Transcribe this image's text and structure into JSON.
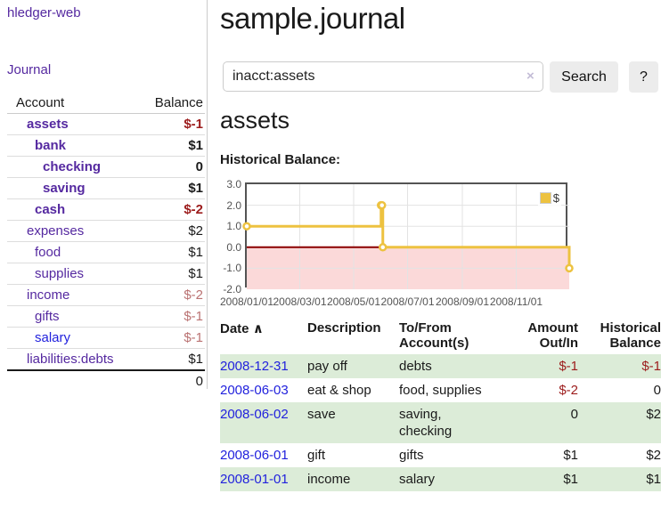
{
  "brand": "hledger-web",
  "nav": {
    "journal_label": "Journal"
  },
  "sidebar": {
    "columns": {
      "account": "Account",
      "balance": "Balance"
    },
    "accounts": [
      {
        "name": "assets",
        "indent": 1,
        "bold": true,
        "balance": "$-1",
        "balance_style": "neg-strong",
        "link": "visited"
      },
      {
        "name": "bank",
        "indent": 2,
        "bold": true,
        "balance": "$1",
        "balance_style": "pos",
        "link": "visited"
      },
      {
        "name": "checking",
        "indent": 3,
        "bold": true,
        "balance": "0",
        "balance_style": "pos",
        "link": "visited"
      },
      {
        "name": "saving",
        "indent": 3,
        "bold": true,
        "balance": "$1",
        "balance_style": "pos",
        "link": "visited"
      },
      {
        "name": "cash",
        "indent": 2,
        "bold": true,
        "balance": "$-2",
        "balance_style": "neg-strong",
        "link": "visited"
      },
      {
        "name": "expenses",
        "indent": 1,
        "bold": false,
        "balance": "$2",
        "balance_style": "pos",
        "link": "visited"
      },
      {
        "name": "food",
        "indent": 2,
        "bold": false,
        "balance": "$1",
        "balance_style": "pos",
        "link": "visited"
      },
      {
        "name": "supplies",
        "indent": 2,
        "bold": false,
        "balance": "$1",
        "balance_style": "pos",
        "link": "visited"
      },
      {
        "name": "income",
        "indent": 1,
        "bold": false,
        "balance": "$-2",
        "balance_style": "neg-muted",
        "link": "visited"
      },
      {
        "name": "gifts",
        "indent": 2,
        "bold": false,
        "balance": "$-1",
        "balance_style": "neg-muted",
        "link": "visited"
      },
      {
        "name": "salary",
        "indent": 2,
        "bold": false,
        "balance": "$-1",
        "balance_style": "neg-muted",
        "link": "unvisited"
      },
      {
        "name": "liabilities:debts",
        "indent": 1,
        "bold": false,
        "balance": "$1",
        "balance_style": "pos",
        "link": "visited"
      }
    ],
    "total": "0"
  },
  "header": {
    "title": "sample.journal"
  },
  "search": {
    "value": "inacct:assets",
    "clear_icon": "×",
    "button_label": "Search",
    "help_label": "?"
  },
  "account_page": {
    "heading": "assets",
    "chart_label": "Historical Balance:"
  },
  "chart_data": {
    "type": "line",
    "title": "Historical Balance",
    "step": true,
    "series": [
      {
        "name": "$",
        "color": "#edc240",
        "points": [
          [
            "2008-01-01",
            1.0
          ],
          [
            "2008-06-01",
            2.0
          ],
          [
            "2008-06-02",
            2.0
          ],
          [
            "2008-06-03",
            0.0
          ],
          [
            "2008-12-31",
            -1.0
          ]
        ]
      }
    ],
    "x_range": [
      "2008-01-01",
      "2008-12-31"
    ],
    "ylim": [
      -2.0,
      3.0
    ],
    "y_ticks": [
      3.0,
      2.0,
      1.0,
      0.0,
      -1.0,
      -2.0
    ],
    "x_ticks": [
      "2008/01/01",
      "2008/03/01",
      "2008/05/01",
      "2008/07/01",
      "2008/09/01",
      "2008/11/01"
    ],
    "legend": {
      "label": "$",
      "position": "top-right"
    },
    "grid": true,
    "colors": {
      "line": "#edc240",
      "marker_fill": "#ffffff",
      "negative_region": "#fbd9d9",
      "zero_line": "#8b0000",
      "gridline": "#e3e3e3",
      "border": "#545454",
      "tick_text": "#545454"
    }
  },
  "register_table": {
    "columns": [
      "Date",
      "Description",
      "To/From Account(s)",
      "Amount Out/In",
      "Historical Balance"
    ],
    "sort_icon": "∧",
    "rows": [
      {
        "date": "2008-12-31",
        "description": "pay off",
        "accounts": "debts",
        "amount": "$-1",
        "amount_neg": true,
        "balance": "$-1",
        "balance_neg": true,
        "shaded": true
      },
      {
        "date": "2008-06-03",
        "description": "eat & shop",
        "accounts": "food, supplies",
        "amount": "$-2",
        "amount_neg": true,
        "balance": "0",
        "balance_neg": false,
        "shaded": false
      },
      {
        "date": "2008-06-02",
        "description": "save",
        "accounts": "saving, checking",
        "amount": "0",
        "amount_neg": false,
        "balance": "$2",
        "balance_neg": false,
        "shaded": true
      },
      {
        "date": "2008-06-01",
        "description": "gift",
        "accounts": "gifts",
        "amount": "$1",
        "amount_neg": false,
        "balance": "$2",
        "balance_neg": false,
        "shaded": false
      },
      {
        "date": "2008-01-01",
        "description": "income",
        "accounts": "salary",
        "amount": "$1",
        "amount_neg": false,
        "balance": "$1",
        "balance_neg": false,
        "shaded": true
      }
    ]
  },
  "colors": {
    "link_visited_purple": "#5529a0",
    "link_unvisited_blue": "#2222dd",
    "negative_strong": "#9c1c1c",
    "negative_muted": "#ba7272",
    "row_shaded_green": "#dcecd8",
    "button_bg": "#ececec",
    "divider": "#cccccc"
  }
}
